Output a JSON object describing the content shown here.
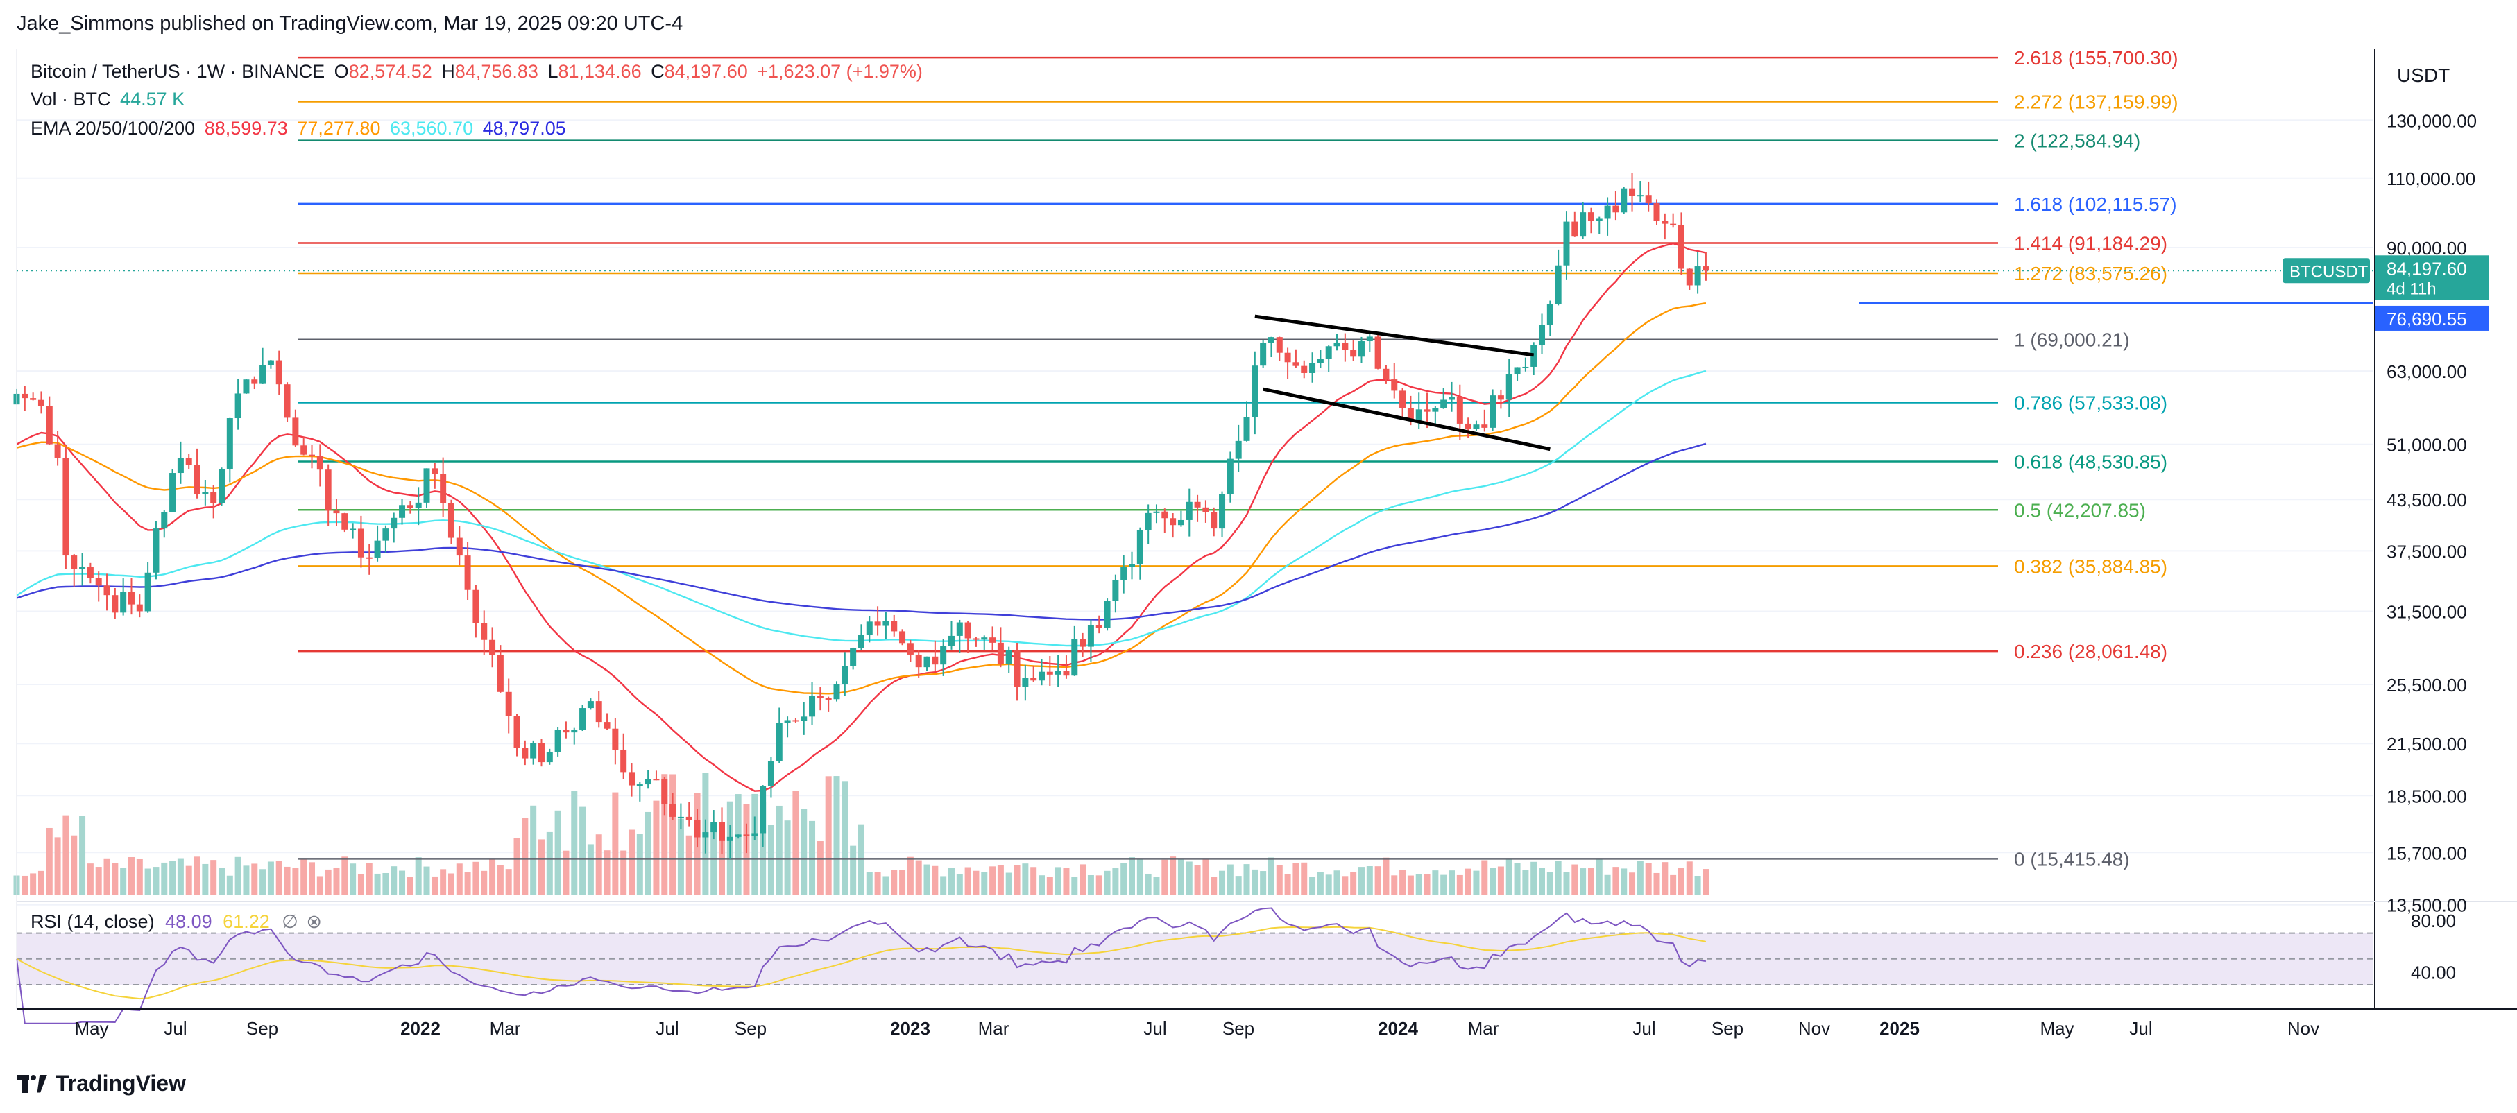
{
  "publisher": "Jake_Simmons published on TradingView.com, Mar 19, 2025 09:20 UTC-4",
  "symbol_line": {
    "name": "Bitcoin / TetherUS · 1W · BINANCE",
    "o_label": "O",
    "o": "82,574.52",
    "h_label": "H",
    "h": "84,756.83",
    "l_label": "L",
    "l": "81,134.66",
    "c_label": "C",
    "c": "84,197.60",
    "change": "+1,623.07 (+1.97%)"
  },
  "vol_line": {
    "label": "Vol · BTC",
    "value": "44.57 K"
  },
  "ema_line": {
    "label": "EMA 20/50/100/200",
    "v20": "88,599.73",
    "v50": "77,277.80",
    "v100": "63,560.70",
    "v200": "48,797.05"
  },
  "rsi_line": {
    "label": "RSI (14, close)",
    "value": "48.09",
    "ma": "61.22"
  },
  "footer": {
    "brand": "TradingView"
  },
  "colors": {
    "up": "#26a69a",
    "down": "#ef5350",
    "ema20": "#f23645",
    "ema50": "#ff9800",
    "ema100": "#4de8f0",
    "ema200": "#3f3fd9",
    "rsi": "#7e57c2",
    "rsi_ma": "#f5d33b"
  },
  "chart_data": {
    "type": "candlestick",
    "title": "Bitcoin / TetherUS · 1W · BINANCE",
    "price_axis": {
      "unit": "USDT",
      "scale": "log",
      "ticks": [
        "130,000.00",
        "110,000.00",
        "90,000.00",
        "63,000.00",
        "51,000.00",
        "43,500.00",
        "37,500.00",
        "31,500.00",
        "25,500.00",
        "21,500.00",
        "18,500.00",
        "15,700.00",
        "13,500.00"
      ]
    },
    "time_axis": {
      "labels": [
        {
          "text": "May",
          "bold": false
        },
        {
          "text": "Jul",
          "bold": false
        },
        {
          "text": "Sep",
          "bold": false
        },
        {
          "text": "2022",
          "bold": true
        },
        {
          "text": "Mar",
          "bold": false
        },
        {
          "text": "Jul",
          "bold": false
        },
        {
          "text": "Sep",
          "bold": false
        },
        {
          "text": "2023",
          "bold": true
        },
        {
          "text": "Mar",
          "bold": false
        },
        {
          "text": "Jul",
          "bold": false
        },
        {
          "text": "Sep",
          "bold": false
        },
        {
          "text": "2024",
          "bold": true
        },
        {
          "text": "Mar",
          "bold": false
        },
        {
          "text": "Jul",
          "bold": false
        },
        {
          "text": "Sep",
          "bold": false
        },
        {
          "text": "Nov",
          "bold": false
        },
        {
          "text": "2025",
          "bold": true
        },
        {
          "text": "May",
          "bold": false
        },
        {
          "text": "Jul",
          "bold": false
        },
        {
          "text": "Nov",
          "bold": false
        }
      ]
    },
    "fib_levels": [
      {
        "label": "2.618 (155,700.30)",
        "value": 155700.3,
        "color": "#e53935"
      },
      {
        "label": "2.272 (137,159.99)",
        "value": 137159.99,
        "color": "#f59d00"
      },
      {
        "label": "2 (122,584.94)",
        "value": 122584.94,
        "color": "#138a70"
      },
      {
        "label": "1.618 (102,115.57)",
        "value": 102115.57,
        "color": "#2962ff"
      },
      {
        "label": "1.414 (91,184.29)",
        "value": 91184.29,
        "color": "#e53935"
      },
      {
        "label": "1.272 (83,575.26)",
        "value": 83575.26,
        "color": "#f59d00"
      },
      {
        "label": "1 (69,000.21)",
        "value": 69000.21,
        "color": "#5d606b"
      },
      {
        "label": "0.786 (57,533.08)",
        "value": 57533.08,
        "color": "#00a3b0"
      },
      {
        "label": "0.618 (48,530.85)",
        "value": 48530.85,
        "color": "#089981"
      },
      {
        "label": "0.5 (42,207.85)",
        "value": 42207.85,
        "color": "#4caf50"
      },
      {
        "label": "0.382 (35,884.85)",
        "value": 35884.85,
        "color": "#f59d00"
      },
      {
        "label": "0.236 (28,061.48)",
        "value": 28061.48,
        "color": "#e53935"
      },
      {
        "label": "0 (15,415.48)",
        "value": 15415.48,
        "color": "#5d606b"
      }
    ],
    "horizontal_line": {
      "value": 76690.55,
      "label": "76,690.55",
      "color": "#2962ff"
    },
    "last_price": {
      "symbol": "BTCUSDT",
      "price": "84,197.60",
      "countdown": "4d 11h",
      "value": 84197.6
    },
    "rsi_axis": {
      "ticks": [
        "80.00",
        "40.00"
      ]
    },
    "closes_anchor": [
      [
        "2021-04-05",
        59000
      ],
      [
        "2021-04-26",
        57000
      ],
      [
        "2021-05-10",
        49000
      ],
      [
        "2021-05-17",
        37000
      ],
      [
        "2021-05-31",
        35800
      ],
      [
        "2021-06-21",
        33000
      ],
      [
        "2021-07-19",
        31500
      ],
      [
        "2021-08-02",
        40000
      ],
      [
        "2021-08-23",
        49000
      ],
      [
        "2021-09-20",
        43000
      ],
      [
        "2021-10-04",
        55000
      ],
      [
        "2021-10-18",
        61500
      ],
      [
        "2021-11-08",
        65000
      ],
      [
        "2021-12-06",
        49500
      ],
      [
        "2022-01-03",
        41800
      ],
      [
        "2022-01-24",
        36800
      ],
      [
        "2022-02-14",
        40000
      ],
      [
        "2022-03-28",
        46800
      ],
      [
        "2022-05-09",
        29000
      ],
      [
        "2022-06-13",
        20600
      ],
      [
        "2022-07-04",
        21000
      ],
      [
        "2022-08-08",
        24300
      ],
      [
        "2022-09-05",
        19800
      ],
      [
        "2022-10-03",
        19400
      ],
      [
        "2022-11-07",
        16400
      ],
      [
        "2022-12-26",
        16600
      ],
      [
        "2023-01-16",
        22800
      ],
      [
        "2023-02-20",
        24500
      ],
      [
        "2023-03-13",
        26900
      ],
      [
        "2023-04-10",
        30200
      ],
      [
        "2023-05-15",
        26800
      ],
      [
        "2023-06-19",
        30500
      ],
      [
        "2023-08-14",
        26000
      ],
      [
        "2023-09-11",
        26500
      ],
      [
        "2023-10-16",
        30000
      ],
      [
        "2023-10-30",
        34500
      ],
      [
        "2023-12-04",
        42000
      ],
      [
        "2024-01-08",
        42500
      ],
      [
        "2024-01-22",
        40000
      ],
      [
        "2024-02-12",
        51500
      ],
      [
        "2024-03-04",
        68300
      ],
      [
        "2024-03-11",
        69500
      ],
      [
        "2024-04-15",
        64500
      ],
      [
        "2024-05-13",
        67000
      ],
      [
        "2024-06-03",
        69600
      ],
      [
        "2024-07-01",
        56600
      ],
      [
        "2024-08-05",
        58000
      ],
      [
        "2024-09-02",
        54000
      ],
      [
        "2024-09-30",
        62500
      ],
      [
        "2024-10-21",
        68000
      ],
      [
        "2024-11-04",
        76500
      ],
      [
        "2024-11-18",
        97000
      ],
      [
        "2024-12-16",
        97800
      ],
      [
        "2025-01-13",
        104500
      ],
      [
        "2025-02-17",
        96000
      ],
      [
        "2025-03-03",
        80700
      ],
      [
        "2025-03-17",
        84197.6
      ]
    ]
  }
}
